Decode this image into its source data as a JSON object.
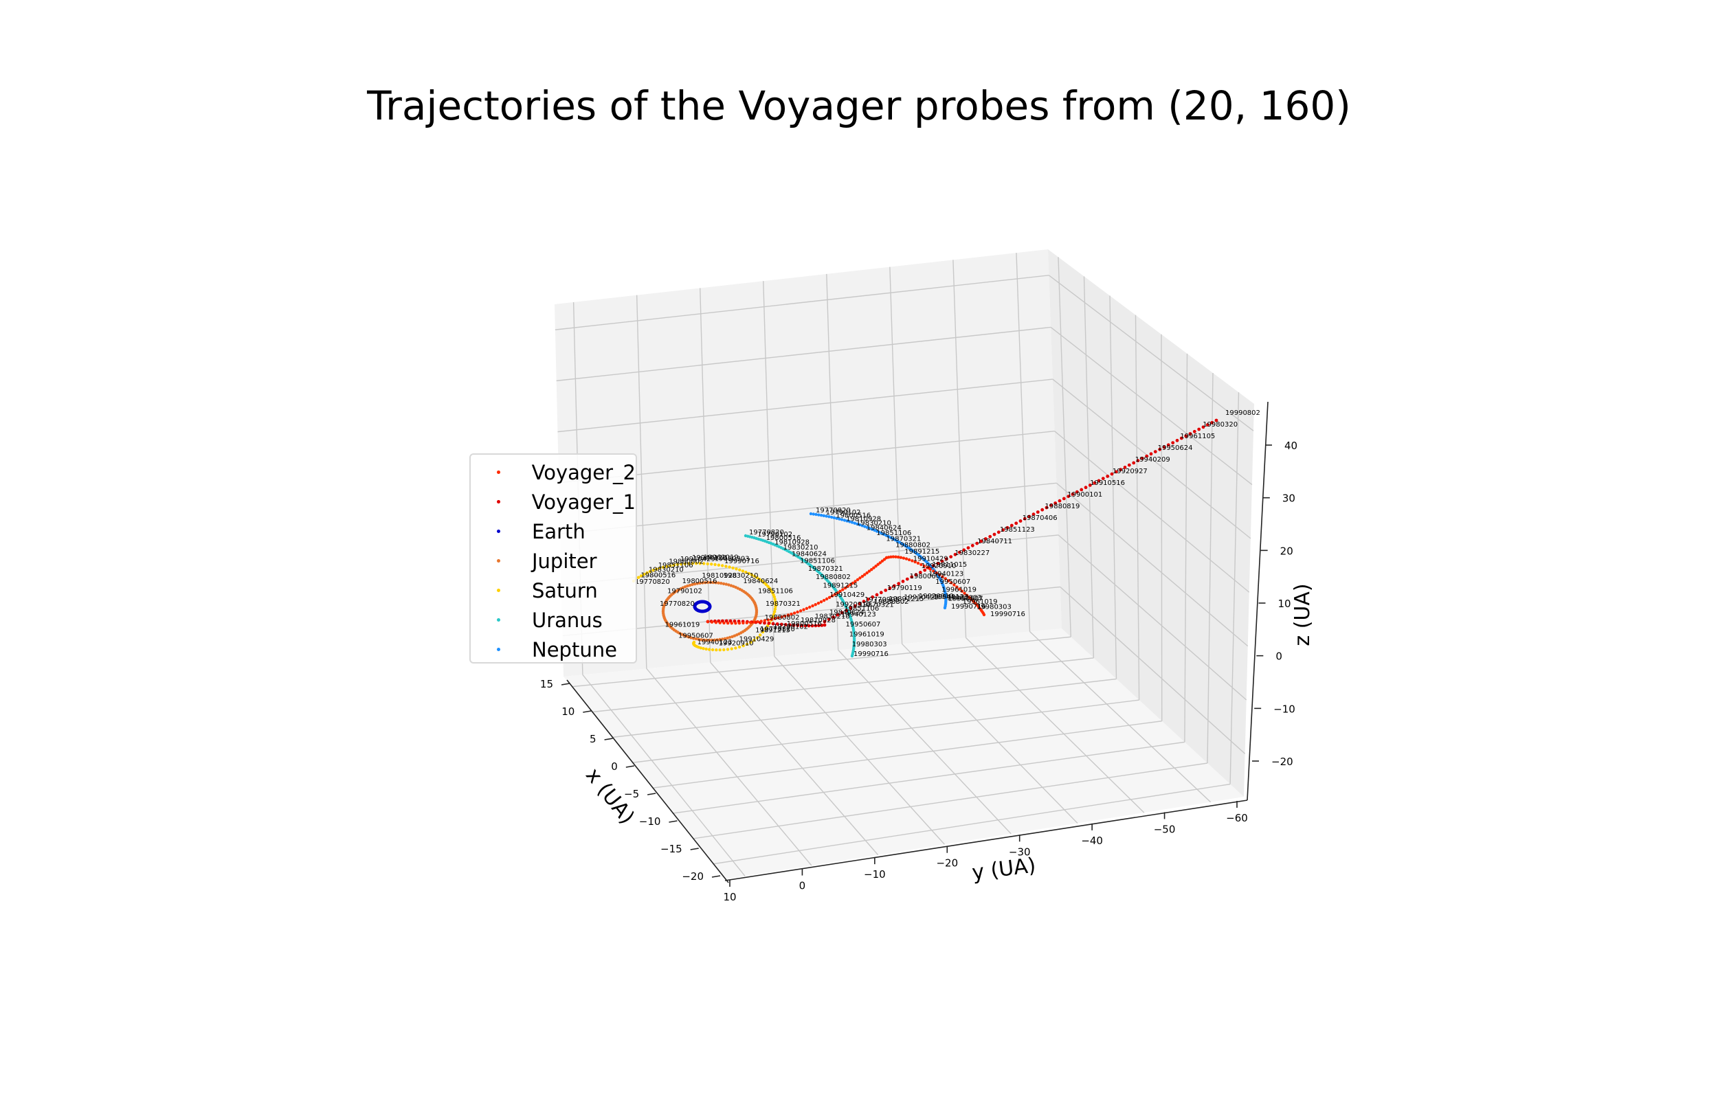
{
  "chart_data": {
    "type": "scatter",
    "projection": "3d",
    "title": "Trajectories of the Voyager probes from (20, 160)",
    "xlabel": "x (UA)",
    "ylabel": "y (UA)",
    "zlabel": "z (UA)",
    "xticks": [
      "15",
      "10",
      "5",
      "0",
      "−5",
      "−10",
      "−15",
      "−20"
    ],
    "yticks": [
      "10",
      "0",
      "−10",
      "−20",
      "−30",
      "−40",
      "−50",
      "−60"
    ],
    "zticks": [
      "40",
      "30",
      "20",
      "10",
      "0",
      "−10",
      "−20"
    ],
    "xlim": [
      -20,
      15
    ],
    "ylim": [
      -60,
      10
    ],
    "zlim": [
      -25,
      45
    ],
    "grid": true,
    "legend_position": "center-left",
    "series": [
      {
        "name": "Voyager_2",
        "color": "#ff2a00",
        "labels": [
          "19770820",
          "19790102",
          "19800516",
          "19810928",
          "19830210",
          "19840624",
          "19851106",
          "19870321",
          "19880802",
          "19891215",
          "19910429",
          "19920910",
          "19940123",
          "19950607",
          "19961019",
          "19980303",
          "19990716"
        ]
      },
      {
        "name": "Voyager_1",
        "color": "#e00000",
        "labels": [
          "19770905",
          "19790119",
          "19800602",
          "19811015",
          "19830227",
          "19840711",
          "19851123",
          "19870406",
          "19880819",
          "19900101",
          "19910516",
          "19920927",
          "19940209",
          "19950624",
          "19961105",
          "19980320",
          "19990802"
        ]
      },
      {
        "name": "Earth",
        "color": "#0000cc",
        "labels": [
          "19770820"
        ]
      },
      {
        "name": "Jupiter",
        "color": "#e8772e",
        "labels": [
          "19770820",
          "19790102",
          "19800516",
          "19810928",
          "19830210",
          "19840624",
          "19851106",
          "19870321",
          "19880802",
          "19891215",
          "19910429",
          "19920910",
          "19940123",
          "19950607",
          "19961019"
        ]
      },
      {
        "name": "Saturn",
        "color": "#ffd000",
        "labels": [
          "19770820",
          "19800516",
          "19830210",
          "19851106",
          "19880802",
          "19910429",
          "19940123",
          "19961019",
          "19980303",
          "19990716"
        ]
      },
      {
        "name": "Uranus",
        "color": "#2ac8c8",
        "labels": [
          "19770820",
          "19790102",
          "19800516",
          "19810928",
          "19830210",
          "19840624",
          "19851106",
          "19870321",
          "19880802",
          "19891215",
          "19910429",
          "19920910",
          "19940123",
          "19950607",
          "19961019",
          "19980303",
          "19990716"
        ]
      },
      {
        "name": "Neptune",
        "color": "#1e90ff",
        "labels": [
          "19770820",
          "19790102",
          "19800516",
          "19810928",
          "19830210",
          "19840624",
          "19851106",
          "19870321",
          "19880802",
          "19891215",
          "19910429",
          "19920910",
          "19940123",
          "19950607",
          "19961019",
          "19980303",
          "19990716"
        ]
      }
    ]
  }
}
